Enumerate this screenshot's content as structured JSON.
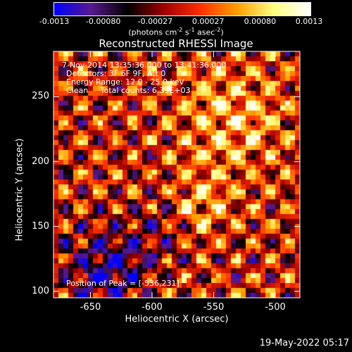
{
  "chart_data": {
    "type": "heatmap",
    "title": "Reconstructed RHESSI Image",
    "xlabel": "Heliocentric X (arcsec)",
    "ylabel": "Heliocentric Y (arcsec)",
    "xlim": [
      -680,
      -480
    ],
    "ylim": [
      95,
      285
    ],
    "x_ticks": [
      "-650",
      "-600",
      "-550",
      "-500"
    ],
    "x_tick_values": [
      -650,
      -600,
      -550,
      -500
    ],
    "y_ticks": [
      "100",
      "150",
      "200",
      "250"
    ],
    "y_tick_values": [
      100,
      150,
      200,
      250
    ],
    "colorbar": {
      "tick_labels": [
        "-0.0013",
        "-0.00080",
        "-0.00027",
        "0.00027",
        "0.00080",
        "0.0013"
      ],
      "tick_values": [
        -0.0013,
        -0.0008,
        -0.00027,
        0.00027,
        0.0008,
        0.0013
      ],
      "range": [
        -0.0013,
        0.0013
      ],
      "colormap": [
        "#0000ff",
        "#5a1a8f",
        "#000000",
        "#a00000",
        "#ff3000",
        "#ffa000",
        "#ffff80",
        "#ffffff"
      ]
    },
    "peak": [
      -536,
      231
    ],
    "grid": false
  },
  "colorbar_unit": {
    "pre": "(photons cm",
    "e1": "-2",
    "mid": " s",
    "e2": "-1",
    "mid2": " asec",
    "e3": "-2",
    "post": ")"
  },
  "info": {
    "time": "7-Nov-2014 13:35:36.000 to 13:41:36.000",
    "detectors": "Detectors: 3F 6F 9F, Att 0",
    "energy": "Energy Range: 12.0 - 25.0 keV",
    "clean": "Clean     Total counts: 6.39E+03",
    "peak": "Position of Peak = [-536,231]"
  },
  "footer_timestamp": "19-May-2022 05:17"
}
